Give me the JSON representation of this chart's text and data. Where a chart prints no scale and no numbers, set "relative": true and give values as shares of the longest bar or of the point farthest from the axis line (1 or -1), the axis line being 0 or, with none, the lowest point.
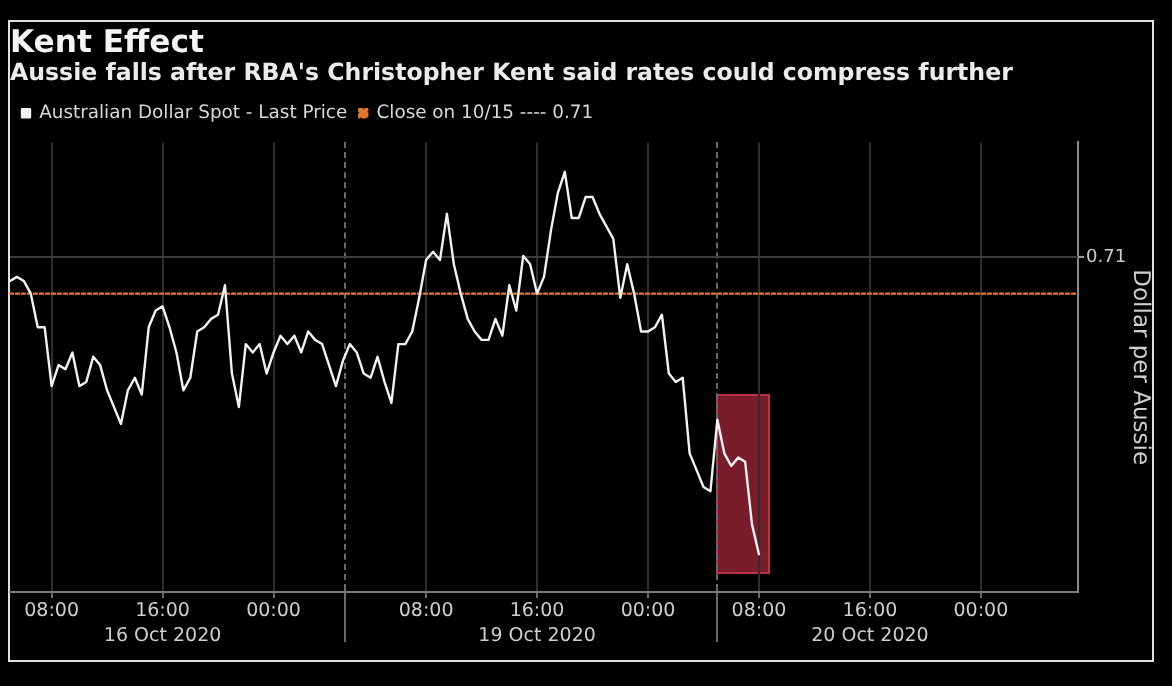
{
  "chart_data": {
    "type": "line",
    "title": "Kent Effect",
    "subtitle": "Aussie falls after RBA's Christopher Kent said rates could compress further",
    "ylabel": "Dollar per Aussie",
    "relative": true,
    "grid": "x",
    "legend": "top left",
    "categories": [
      null,
      null,
      null,
      null,
      null,
      null,
      "08:00",
      null,
      null,
      null,
      null,
      null,
      null,
      null,
      null,
      null,
      null,
      null,
      null,
      null,
      null,
      null,
      "16:00\n16 Oct 2020",
      null,
      null,
      null,
      null,
      null,
      null,
      null,
      null,
      null,
      null,
      null,
      null,
      null,
      null,
      null,
      "00:00",
      null,
      null,
      null,
      null,
      null,
      null,
      null,
      null,
      null,
      null,
      null,
      null,
      null,
      null,
      null,
      null,
      null,
      null,
      null,
      null,
      null,
      "08:00",
      null,
      null,
      null,
      null,
      null,
      null,
      null,
      null,
      null,
      null,
      null,
      null,
      null,
      null,
      null,
      "16:00\n19 Oct 2020",
      null,
      null,
      null,
      null,
      null,
      null,
      null,
      null,
      null,
      null,
      null,
      null,
      null,
      null,
      null,
      "00:00",
      null,
      null,
      null,
      null,
      null,
      null,
      null,
      null,
      null,
      null,
      null,
      null,
      null,
      null,
      null,
      "08:00",
      null,
      null,
      null,
      null,
      null,
      null,
      null,
      null,
      null,
      null,
      null,
      null,
      null,
      null,
      null,
      "16:00\n20 Oct 2020",
      null,
      null,
      null,
      null,
      null,
      null,
      null,
      null,
      null,
      null,
      null,
      null,
      null,
      null,
      null,
      "00:00",
      null,
      null,
      null,
      null,
      null,
      null,
      null,
      null,
      null,
      null,
      null,
      null,
      null,
      null
    ],
    "series": [
      {
        "name": "Australian Dollar Spot - Last Price",
        "color": "#f2f2f2",
        "values": [
          0.74,
          0.75,
          0.74,
          0.71,
          0.63,
          0.63,
          0.49,
          0.54,
          0.53,
          0.57,
          0.49,
          0.5,
          0.56,
          0.54,
          0.48,
          0.44,
          0.4,
          0.48,
          0.51,
          0.47,
          0.63,
          0.67,
          0.68,
          0.63,
          0.57,
          0.48,
          0.51,
          0.62,
          0.63,
          0.65,
          0.66,
          0.73,
          0.52,
          0.44,
          0.59,
          0.57,
          0.59,
          0.52,
          0.57,
          0.61,
          0.59,
          0.61,
          0.57,
          0.62,
          0.6,
          0.59,
          0.54,
          0.49,
          0.55,
          0.59,
          0.57,
          0.52,
          0.51,
          0.56,
          0.5,
          0.45,
          0.59,
          0.59,
          0.62,
          0.7,
          0.79,
          0.81,
          0.79,
          0.9,
          0.78,
          0.71,
          0.65,
          0.62,
          0.6,
          0.6,
          0.65,
          0.61,
          0.73,
          0.67,
          0.8,
          0.78,
          0.71,
          0.75,
          0.86,
          0.95,
          1.0,
          0.89,
          0.89,
          0.94,
          0.94,
          0.9,
          0.87,
          0.84,
          0.7,
          0.78,
          0.71,
          0.62,
          0.62,
          0.63,
          0.66,
          0.52,
          0.5,
          0.51,
          0.33,
          0.29,
          0.25,
          0.24,
          0.41,
          0.33,
          0.3,
          0.32,
          0.31,
          0.16,
          0.09,
          null,
          null,
          null,
          null,
          null,
          null,
          null,
          null,
          null,
          null,
          null,
          null,
          null,
          null,
          null,
          null,
          null,
          null,
          null,
          null,
          null,
          null,
          null,
          null,
          null,
          null,
          null,
          null,
          null,
          null,
          null,
          null,
          null,
          null,
          null,
          null,
          null,
          null,
          null,
          null,
          null,
          null,
          null,
          null,
          null,
          null
        ]
      },
      {
        "name": "Close on 10/15 ---- 0.71",
        "color": "#e0782e",
        "line_style": "dotted",
        "values": [
          0.71,
          0.71,
          0.71,
          0.71,
          0.71,
          0.71,
          0.71,
          0.71,
          0.71,
          0.71,
          0.71,
          0.71,
          0.71,
          0.71,
          0.71,
          0.71,
          0.71,
          0.71,
          0.71,
          0.71,
          0.71,
          0.71,
          0.71,
          0.71,
          0.71,
          0.71,
          0.71,
          0.71,
          0.71,
          0.71,
          0.71,
          0.71,
          0.71,
          0.71,
          0.71,
          0.71,
          0.71,
          0.71,
          0.71,
          0.71,
          0.71,
          0.71,
          0.71,
          0.71,
          0.71,
          0.71,
          0.71,
          0.71,
          0.71,
          0.71,
          0.71,
          0.71,
          0.71,
          0.71,
          0.71,
          0.71,
          0.71,
          0.71,
          0.71,
          0.71,
          0.71,
          0.71,
          0.71,
          0.71,
          0.71,
          0.71,
          0.71,
          0.71,
          0.71,
          0.71,
          0.71,
          0.71,
          0.71,
          0.71,
          0.71,
          0.71,
          0.71,
          0.71,
          0.71,
          0.71,
          0.71,
          0.71,
          0.71,
          0.71,
          0.71,
          0.71,
          0.71,
          0.71,
          0.71,
          0.71,
          0.71,
          0.71,
          0.71,
          0.71,
          0.71,
          0.71,
          0.71,
          0.71,
          0.71,
          0.71,
          0.71,
          0.71,
          0.71,
          0.71,
          0.71,
          0.71,
          0.71,
          0.71,
          0.71,
          0.71,
          0.71,
          0.71,
          0.71,
          0.71,
          0.71,
          0.71,
          0.71,
          0.71,
          0.71,
          0.71,
          0.71,
          0.71,
          0.71,
          0.71,
          0.71,
          0.71,
          0.71,
          0.71,
          0.71,
          0.71,
          0.71,
          0.71,
          0.71,
          0.71,
          0.71,
          0.71,
          0.71,
          0.71,
          0.71,
          0.71,
          0.71,
          0.71,
          0.71,
          0.71,
          0.71,
          0.71,
          0.71,
          0.71,
          0.71,
          0.71,
          0.71,
          0.71,
          0.71,
          0.71,
          0.71
        ]
      }
    ],
    "ref_lines": [
      {
        "axis": "y",
        "value": 0.8,
        "color": "#3c3c3c"
      }
    ],
    "annotations": [
      "0.71"
    ]
  }
}
